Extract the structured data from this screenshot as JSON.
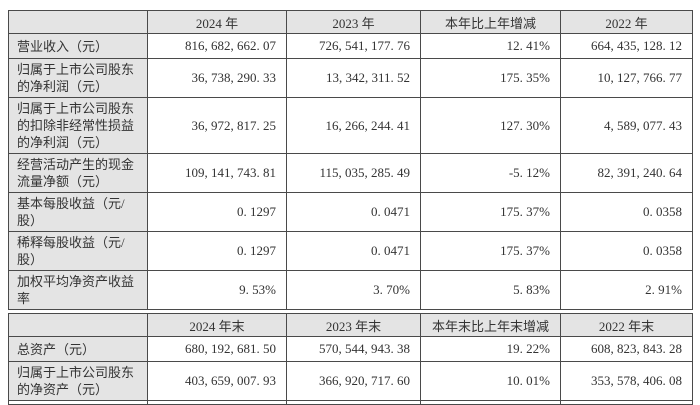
{
  "colors": {
    "header-bg": "#e4e4e4",
    "label-bg": "#e4e4e4",
    "cell-bg": "#ffffff",
    "border": "#4a4a4a",
    "text": "#333333"
  },
  "table1": {
    "headers": [
      "",
      "2024 年",
      "2023 年",
      "本年比上年增减",
      "2022 年"
    ],
    "rows": [
      {
        "label": "营业收入（元）",
        "values": [
          "816, 682, 662. 07",
          "726, 541, 177. 76",
          "12. 41%",
          "664, 435, 128. 12"
        ]
      },
      {
        "label": "归属于上市公司股东的净利润（元）",
        "values": [
          "36, 738, 290. 33",
          "13, 342, 311. 52",
          "175. 35%",
          "10, 127, 766. 77"
        ]
      },
      {
        "label": "归属于上市公司股东的扣除非经常性损益的净利润（元）",
        "values": [
          "36, 972, 817. 25",
          "16, 266, 244. 41",
          "127. 30%",
          "4, 589, 077. 43"
        ]
      },
      {
        "label": "经营活动产生的现金流量净额（元）",
        "values": [
          "109, 141, 743. 81",
          "115, 035, 285. 49",
          "-5. 12%",
          "82, 391, 240. 64"
        ]
      },
      {
        "label": "基本每股收益（元/股）",
        "values": [
          "0. 1297",
          "0. 0471",
          "175. 37%",
          "0. 0358"
        ]
      },
      {
        "label": "稀释每股收益（元/股）",
        "values": [
          "0. 1297",
          "0. 0471",
          "175. 37%",
          "0. 0358"
        ]
      },
      {
        "label": "加权平均净资产收益率",
        "values": [
          "9. 53%",
          "3. 70%",
          "5. 83%",
          "2. 91%"
        ]
      }
    ]
  },
  "table2": {
    "headers": [
      "",
      "2024 年末",
      "2023 年末",
      "本年末比上年末增减",
      "2022 年末"
    ],
    "rows": [
      {
        "label": "总资产（元）",
        "values": [
          "680, 192, 681. 50",
          "570, 544, 943. 38",
          "19. 22%",
          "608, 823, 843. 28"
        ]
      },
      {
        "label": "归属于上市公司股东的净资产（元）",
        "values": [
          "403, 659, 007. 93",
          "366, 920, 717. 60",
          "10. 01%",
          "353, 578, 406. 08"
        ]
      }
    ]
  }
}
